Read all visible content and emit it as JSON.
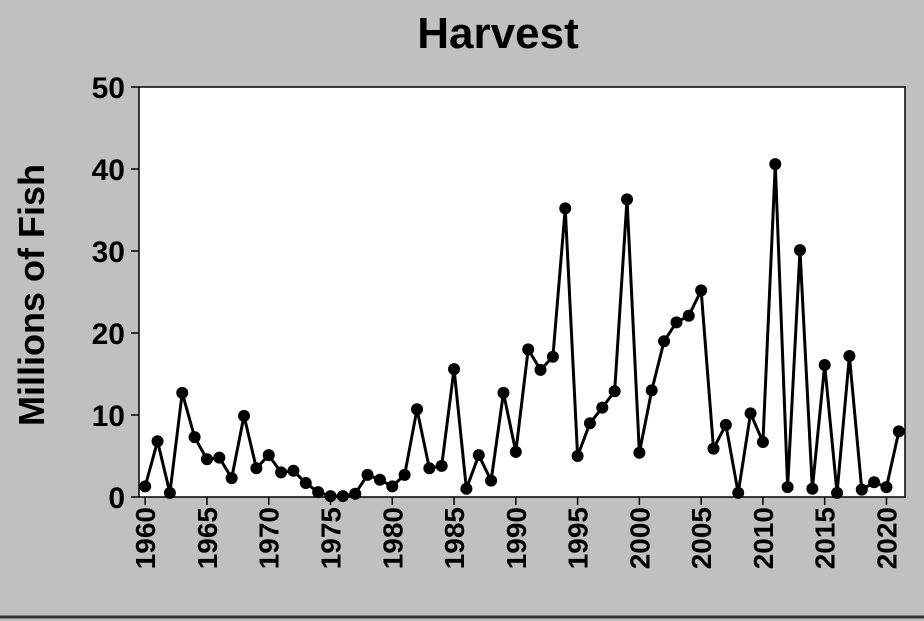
{
  "chart_data": {
    "type": "line",
    "title": "Harvest",
    "y_label": "Millions of Fish",
    "x": [
      1960,
      1961,
      1962,
      1963,
      1964,
      1965,
      1966,
      1967,
      1968,
      1969,
      1970,
      1971,
      1972,
      1973,
      1974,
      1975,
      1976,
      1977,
      1978,
      1979,
      1980,
      1981,
      1982,
      1983,
      1984,
      1985,
      1986,
      1987,
      1988,
      1989,
      1990,
      1991,
      1992,
      1993,
      1994,
      1995,
      1996,
      1997,
      1998,
      1999,
      2000,
      2001,
      2002,
      2003,
      2004,
      2005,
      2006,
      2007,
      2008,
      2009,
      2010,
      2011,
      2012,
      2013,
      2014,
      2015,
      2016,
      2017,
      2018,
      2019,
      2020,
      2021
    ],
    "series": [
      {
        "name": "Harvest",
        "color": "#000000",
        "values": [
          1.3,
          6.8,
          0.5,
          12.7,
          7.3,
          4.6,
          4.8,
          2.3,
          9.9,
          3.5,
          5.1,
          3.0,
          3.2,
          1.7,
          0.6,
          0.1,
          0.1,
          0.4,
          2.7,
          2.1,
          1.3,
          2.7,
          10.7,
          3.5,
          3.8,
          15.6,
          1.0,
          5.1,
          2.0,
          12.7,
          5.5,
          18.0,
          15.5,
          17.1,
          35.2,
          5.0,
          9.0,
          10.9,
          12.9,
          36.3,
          5.4,
          13.0,
          19.0,
          21.3,
          22.1,
          25.2,
          5.9,
          8.8,
          0.5,
          10.2,
          6.7,
          40.6,
          1.2,
          30.1,
          1.0,
          16.1,
          0.5,
          17.2,
          0.9,
          1.8,
          1.2,
          8.0
        ]
      }
    ],
    "xlim": [
      1959.5,
      2021.5
    ],
    "xticks": [
      1960,
      1965,
      1970,
      1975,
      1980,
      1985,
      1990,
      1995,
      2000,
      2005,
      2010,
      2015,
      2020
    ],
    "ylim": [
      0,
      50
    ],
    "yticks": [
      0,
      10,
      20,
      30,
      40,
      50
    ],
    "grid": false
  }
}
